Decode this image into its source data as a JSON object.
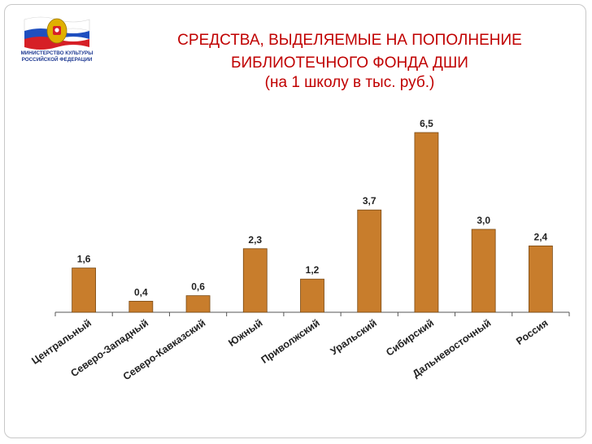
{
  "header": {
    "logo_text": "МИНИСТЕРСТВО КУЛЬТУРЫ\nРОССИЙСКОЙ ФЕДЕРАЦИИ",
    "title": "СРЕДСТВА, ВЫДЕЛЯЕМЫЕ НА ПОПОЛНЕНИЕ\nБИБЛИОТЕЧНОГО ФОНДА ДШИ",
    "subtitle": "(на 1 школу в тыс. руб.)"
  },
  "colors": {
    "bar": "#c87d2c",
    "bar_stroke": "#7a4a14",
    "title": "#c00000"
  },
  "chart_data": {
    "type": "bar",
    "title": "СРЕДСТВА, ВЫДЕЛЯЕМЫЕ НА ПОПОЛНЕНИЕ БИБЛИОТЕЧНОГО ФОНДА ДШИ (на 1 школу в тыс. руб.)",
    "xlabel": "",
    "ylabel": "",
    "categories": [
      "Центральный",
      "Северо-Западный",
      "Северо-Кавказский",
      "Южный",
      "Приволжский",
      "Уральский",
      "Сибирский",
      "Дальневосточный",
      "Россия"
    ],
    "values": [
      1.6,
      0.4,
      0.6,
      2.3,
      1.2,
      3.7,
      6.5,
      3.0,
      2.4
    ],
    "value_labels": [
      "1,6",
      "0,4",
      "0,6",
      "2,3",
      "1,2",
      "3,7",
      "6,5",
      "3,0",
      "2,4"
    ],
    "ylim": [
      0,
      6.5
    ],
    "grid": false,
    "legend": "none"
  }
}
